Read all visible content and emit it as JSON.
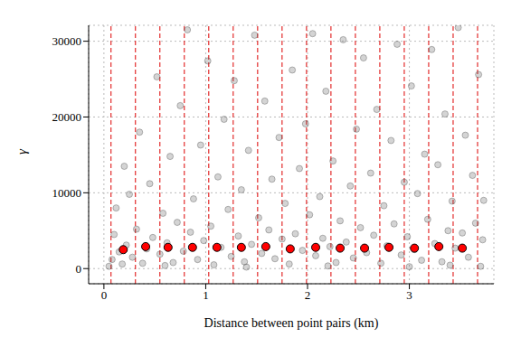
{
  "chart_data": {
    "type": "scatter",
    "x_label": "Distance between point pairs (km)",
    "y_label": "γ",
    "xlim": [
      -0.15,
      3.83
    ],
    "ylim": [
      -2000,
      32100
    ],
    "xticks": [
      0,
      1,
      2,
      3
    ],
    "yticks": [
      0,
      10000,
      20000,
      30000
    ],
    "grid": true,
    "bin_breaks": [
      0.07,
      0.31,
      0.55,
      0.79,
      1.03,
      1.27,
      1.51,
      1.75,
      1.99,
      2.23,
      2.47,
      2.71,
      2.95,
      3.19,
      3.43,
      3.67
    ],
    "bin_break_color": "#dd0000",
    "series": [
      {
        "color": "#555555",
        "marker": "circle",
        "x": [
          0.05,
          0.08,
          0.1,
          0.12,
          0.15,
          0.18,
          0.2,
          0.22,
          0.25,
          0.28,
          0.32,
          0.35,
          0.38,
          0.42,
          0.45,
          0.48,
          0.52,
          0.55,
          0.58,
          0.62,
          0.65,
          0.68,
          0.72,
          0.75,
          0.78,
          0.82,
          0.85,
          0.88,
          0.92,
          0.95,
          0.98,
          1.02,
          1.05,
          1.08,
          1.12,
          1.15,
          1.18,
          1.22,
          1.25,
          1.28,
          1.32,
          1.35,
          1.38,
          1.42,
          1.45,
          1.48,
          1.52,
          1.55,
          1.58,
          1.62,
          1.65,
          1.68,
          1.72,
          1.75,
          1.78,
          1.82,
          1.85,
          1.88,
          1.92,
          1.95,
          1.98,
          2.02,
          2.05,
          2.08,
          2.12,
          2.15,
          2.18,
          2.22,
          2.25,
          2.28,
          2.32,
          2.35,
          2.38,
          2.42,
          2.45,
          2.48,
          2.52,
          2.55,
          2.58,
          2.62,
          2.65,
          2.68,
          2.72,
          2.75,
          2.78,
          2.82,
          2.85,
          2.88,
          2.92,
          2.95,
          2.98,
          3.02,
          3.05,
          3.08,
          3.12,
          3.15,
          3.18,
          3.22,
          3.25,
          3.28,
          3.32,
          3.35,
          3.38,
          3.42,
          3.45,
          3.48,
          3.52,
          3.55,
          3.58,
          3.62,
          3.65,
          3.68,
          3.7,
          3.72,
          3.73,
          0.6,
          1.4,
          2.2,
          3.0,
          3.4
        ],
        "y": [
          300,
          1200,
          4500,
          8000,
          2200,
          600,
          13500,
          3100,
          9800,
          1500,
          5200,
          18000,
          700,
          2600,
          11200,
          4100,
          25300,
          1900,
          7300,
          3400,
          14800,
          800,
          6100,
          21500,
          2300,
          31500,
          4800,
          9200,
          1200,
          16300,
          3700,
          27400,
          5600,
          500,
          12100,
          2800,
          19700,
          7800,
          1600,
          24800,
          4300,
          10400,
          900,
          15600,
          3200,
          30800,
          6700,
          2000,
          22100,
          5100,
          11800,
          1300,
          17300,
          3900,
          8600,
          600,
          26200,
          4600,
          13200,
          2400,
          19100,
          7100,
          31000,
          1700,
          9500,
          4000,
          23400,
          2900,
          14200,
          800,
          6300,
          30200,
          3500,
          10900,
          1400,
          18400,
          5400,
          27800,
          2100,
          12600,
          4400,
          21000,
          700,
          8300,
          3000,
          16900,
          5900,
          29600,
          1800,
          11400,
          4200,
          24100,
          2500,
          9900,
          1100,
          15100,
          6500,
          28900,
          3300,
          13700,
          900,
          20400,
          5000,
          8900,
          2700,
          31800,
          4700,
          17600,
          1500,
          12300,
          6000,
          25600,
          300,
          3800,
          9000,
          400,
          200,
          350,
          250,
          450
        ]
      },
      {
        "color": "#ff0000",
        "marker": "circle",
        "x": [
          0.19,
          0.41,
          0.63,
          0.87,
          1.11,
          1.35,
          1.59,
          1.83,
          2.08,
          2.32,
          2.56,
          2.8,
          3.05,
          3.29,
          3.52
        ],
        "y": [
          2500,
          2900,
          2800,
          2800,
          2800,
          2800,
          2900,
          2600,
          2800,
          2700,
          2700,
          2800,
          2700,
          2900,
          2700
        ]
      }
    ]
  }
}
